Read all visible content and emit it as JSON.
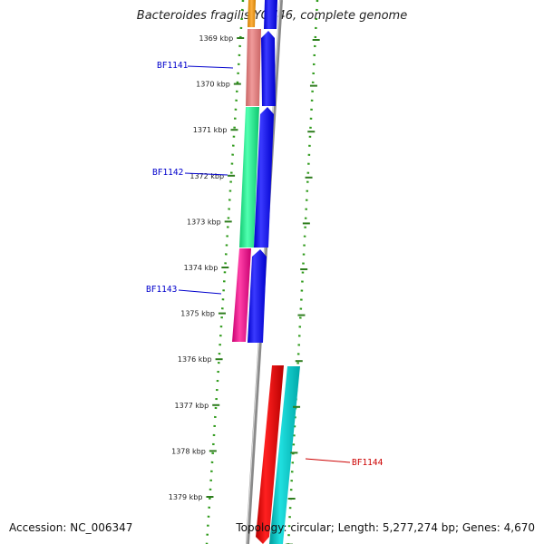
{
  "title": "Bacteroides fragilis YCH46, complete genome",
  "footer": {
    "accession": "Accession: NC_006347",
    "summary": "Topology: circular; Length: 5,277,274 bp; Genes: 4,670"
  },
  "scale_labels": [
    "1369 kbp",
    "1370 kbp",
    "1371 kbp",
    "1372 kbp",
    "1373 kbp",
    "1374 kbp",
    "1375 kbp",
    "1376 kbp",
    "1377 kbp",
    "1378 kbp",
    "1379 kbp"
  ],
  "genes": [
    {
      "id": "BF1141",
      "color": "#0000cc"
    },
    {
      "id": "BF1142",
      "color": "#0000cc"
    },
    {
      "id": "BF1143",
      "color": "#0000cc"
    },
    {
      "id": "BF1144",
      "color": "#cc0000"
    }
  ],
  "colors": {
    "tick": "#2e7d1e",
    "dot": "#2e9a1a",
    "backbone": "#888888",
    "forward_feature": "#0000ee",
    "reverse_feature": "#ee0000",
    "reverse_feature_2": "#00c8c8",
    "cog_1": "#e07b7b",
    "cog_2": "#1ef08a",
    "cog_3": "#f01e8c",
    "cog_top": "#f0a020"
  }
}
